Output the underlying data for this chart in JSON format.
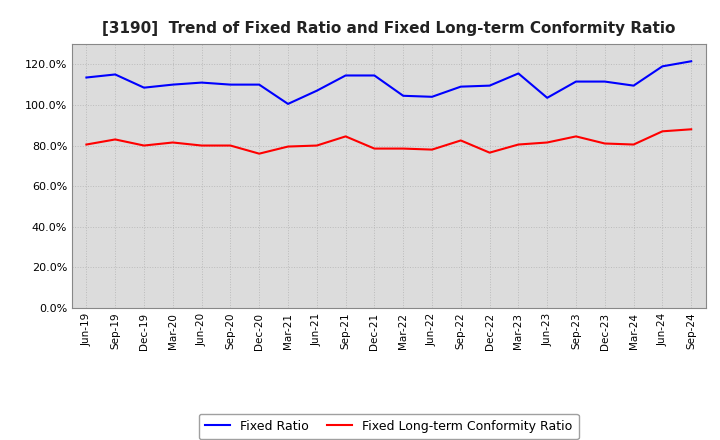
{
  "title": "[3190]  Trend of Fixed Ratio and Fixed Long-term Conformity Ratio",
  "x_labels": [
    "Jun-19",
    "Sep-19",
    "Dec-19",
    "Mar-20",
    "Jun-20",
    "Sep-20",
    "Dec-20",
    "Mar-21",
    "Jun-21",
    "Sep-21",
    "Dec-21",
    "Mar-22",
    "Jun-22",
    "Sep-22",
    "Dec-22",
    "Mar-23",
    "Jun-23",
    "Sep-23",
    "Dec-23",
    "Mar-24",
    "Jun-24",
    "Sep-24"
  ],
  "fixed_ratio": [
    113.5,
    115.0,
    108.5,
    110.0,
    111.0,
    110.0,
    110.0,
    100.5,
    107.0,
    114.5,
    114.5,
    104.5,
    104.0,
    109.0,
    109.5,
    115.5,
    103.5,
    111.5,
    111.5,
    109.5,
    119.0,
    121.5
  ],
  "fixed_lt_ratio": [
    80.5,
    83.0,
    80.0,
    81.5,
    80.0,
    80.0,
    76.0,
    79.5,
    80.0,
    84.5,
    78.5,
    78.5,
    78.0,
    82.5,
    76.5,
    80.5,
    81.5,
    84.5,
    81.0,
    80.5,
    87.0,
    88.0
  ],
  "fixed_ratio_color": "#0000FF",
  "fixed_lt_ratio_color": "#FF0000",
  "ylim": [
    0,
    130
  ],
  "yticks": [
    0,
    20,
    40,
    60,
    80,
    100,
    120
  ],
  "background_color": "#FFFFFF",
  "plot_bg_color": "#DCDCDC",
  "grid_color": "#BBBBBB",
  "legend_labels": [
    "Fixed Ratio",
    "Fixed Long-term Conformity Ratio"
  ]
}
